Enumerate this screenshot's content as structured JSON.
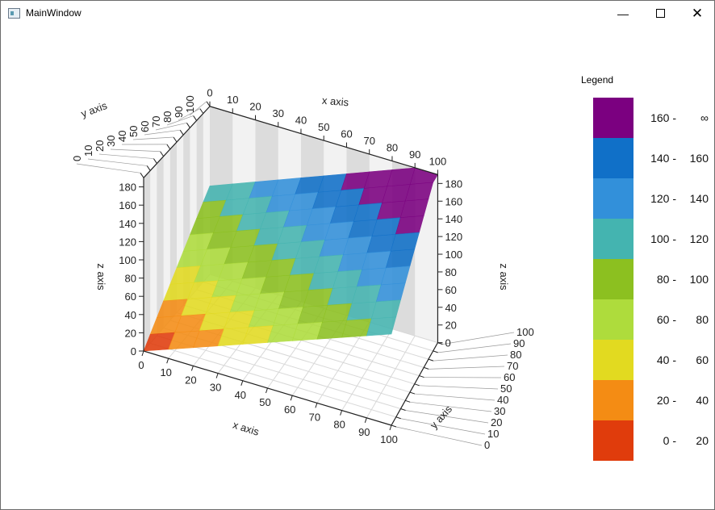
{
  "window": {
    "title": "MainWindow",
    "minimize_icon": "minimize-icon",
    "maximize_icon": "maximize-icon",
    "close_icon": "close-icon"
  },
  "legend": {
    "title": "Legend",
    "items": [
      {
        "from": "160 -",
        "to": "∞",
        "color": "#7b0080"
      },
      {
        "from": "140 -",
        "to": "160",
        "color": "#1070c8"
      },
      {
        "from": "120 -",
        "to": "140",
        "color": "#3290da"
      },
      {
        "from": "100 -",
        "to": "120",
        "color": "#44b4b0"
      },
      {
        "from": "80 -",
        "to": "100",
        "color": "#8cc020"
      },
      {
        "from": "60 -",
        "to": "80",
        "color": "#aedc3c"
      },
      {
        "from": "40 -",
        "to": "60",
        "color": "#e2da20"
      },
      {
        "from": "20 -",
        "to": "40",
        "color": "#f48c14"
      },
      {
        "from": "0 -",
        "to": "20",
        "color": "#e03c0c"
      }
    ]
  },
  "chart_data": {
    "type": "surface",
    "xlabel": "x axis",
    "ylabel": "y axis",
    "zlabel": "z axis",
    "xlim": [
      0,
      100
    ],
    "ylim": [
      0,
      100
    ],
    "zlim": [
      0,
      190
    ],
    "x_ticks": [
      "0",
      "10",
      "20",
      "30",
      "40",
      "50",
      "60",
      "70",
      "80",
      "90",
      "100"
    ],
    "y_ticks": [
      "0",
      "10",
      "20",
      "30",
      "40",
      "50",
      "60",
      "70",
      "80",
      "90",
      "100"
    ],
    "z_ticks": [
      "0",
      "20",
      "40",
      "60",
      "80",
      "100",
      "120",
      "140",
      "160",
      "180"
    ],
    "x": [
      0,
      10,
      20,
      30,
      40,
      50,
      60,
      70,
      80,
      90,
      100
    ],
    "y": [
      0,
      10,
      20,
      30,
      40,
      50,
      60,
      70,
      80,
      90,
      100
    ],
    "z": [
      [
        0,
        10,
        20,
        30,
        40,
        50,
        60,
        70,
        80,
        90,
        100
      ],
      [
        10,
        20,
        30,
        40,
        50,
        60,
        70,
        80,
        90,
        100,
        110
      ],
      [
        20,
        30,
        40,
        50,
        60,
        70,
        80,
        90,
        100,
        110,
        120
      ],
      [
        30,
        40,
        50,
        60,
        70,
        80,
        90,
        100,
        110,
        120,
        130
      ],
      [
        40,
        50,
        60,
        70,
        80,
        90,
        100,
        110,
        120,
        130,
        140
      ],
      [
        50,
        60,
        70,
        80,
        90,
        100,
        110,
        120,
        130,
        140,
        150
      ],
      [
        60,
        70,
        80,
        90,
        100,
        110,
        120,
        130,
        140,
        150,
        160
      ],
      [
        70,
        80,
        90,
        100,
        110,
        120,
        130,
        140,
        150,
        160,
        170
      ],
      [
        80,
        90,
        100,
        110,
        120,
        130,
        140,
        150,
        160,
        170,
        180
      ],
      [
        90,
        100,
        110,
        120,
        130,
        140,
        150,
        160,
        170,
        180,
        190
      ],
      [
        100,
        110,
        120,
        130,
        140,
        150,
        160,
        170,
        180,
        190,
        200
      ]
    ],
    "grid": true,
    "legend": "right"
  }
}
